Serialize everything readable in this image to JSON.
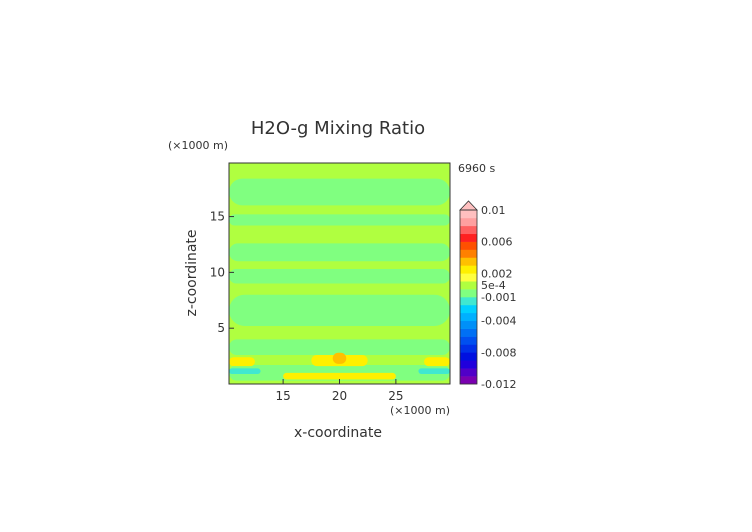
{
  "chart_data": {
    "type": "heatmap",
    "title": "H2O-g Mixing Ratio",
    "xlabel": "x-coordinate",
    "ylabel": "z-coordinate",
    "x_unit": "(×1000 m)",
    "y_unit": "(×1000 m)",
    "time_label": "6960 s",
    "xlim": [
      10.2,
      29.8
    ],
    "ylim": [
      0,
      19.8
    ],
    "x_ticks": [
      "15",
      "20",
      "25"
    ],
    "y_ticks": [
      "5",
      "10",
      "15"
    ],
    "colorbar": {
      "labels": [
        "0.01",
        "0.006",
        "0.002",
        "5e-4",
        "-0.001",
        "-0.004",
        "-0.008",
        "-0.012"
      ],
      "min": -0.012,
      "max": 0.01,
      "extend": "max",
      "colors": [
        "#7a00b0",
        "#5000c8",
        "#2000dc",
        "#0010e0",
        "#0030e8",
        "#0050f0",
        "#0070f4",
        "#0090f8",
        "#00b0ff",
        "#00d0ff",
        "#40e8d0",
        "#80ff80",
        "#b0ff40",
        "#ffff40",
        "#fff000",
        "#ffc000",
        "#ff8000",
        "#ff5000",
        "#ff2020",
        "#ff6060",
        "#ffa0a0",
        "#ffc0c0"
      ]
    },
    "regions": [
      {
        "x0": 10.2,
        "x1": 29.8,
        "y0": 0,
        "y1": 19.8,
        "value": 0.0003
      },
      {
        "x0": 10.2,
        "x1": 29.8,
        "y0": 0.3,
        "y1": 1.7,
        "value": -0.0005
      },
      {
        "x0": 10.2,
        "x1": 29.8,
        "y0": 1.8,
        "y1": 2.6,
        "value": 0.0001
      },
      {
        "x0": 10.2,
        "x1": 29.8,
        "y0": 2.6,
        "y1": 4.0,
        "value": -0.0005
      },
      {
        "x0": 10.2,
        "x1": 29.8,
        "y0": 5.2,
        "y1": 8.0,
        "value": -0.0005
      },
      {
        "x0": 10.2,
        "x1": 29.8,
        "y0": 9.0,
        "y1": 10.3,
        "value": -0.0005
      },
      {
        "x0": 10.2,
        "x1": 29.8,
        "y0": 11.0,
        "y1": 12.6,
        "value": -0.0005
      },
      {
        "x0": 10.2,
        "x1": 29.8,
        "y0": 14.2,
        "y1": 15.2,
        "value": -0.0005
      },
      {
        "x0": 10.2,
        "x1": 29.8,
        "y0": 16.0,
        "y1": 18.4,
        "value": -0.0005
      },
      {
        "x0": 17.5,
        "x1": 22.5,
        "y0": 1.6,
        "y1": 2.6,
        "value": 0.002
      },
      {
        "x0": 10.2,
        "x1": 12.5,
        "y0": 1.6,
        "y1": 2.4,
        "value": 0.002
      },
      {
        "x0": 27.5,
        "x1": 29.8,
        "y0": 1.6,
        "y1": 2.4,
        "value": 0.002
      },
      {
        "x0": 19.4,
        "x1": 20.6,
        "y0": 1.8,
        "y1": 2.8,
        "value": 0.003
      },
      {
        "x0": 15.0,
        "x1": 25.0,
        "y0": 0.4,
        "y1": 1.0,
        "value": 0.002
      },
      {
        "x0": 10.2,
        "x1": 13.0,
        "y0": 0.9,
        "y1": 1.4,
        "value": -0.002
      },
      {
        "x0": 27.0,
        "x1": 29.8,
        "y0": 0.9,
        "y1": 1.4,
        "value": -0.002
      }
    ]
  }
}
